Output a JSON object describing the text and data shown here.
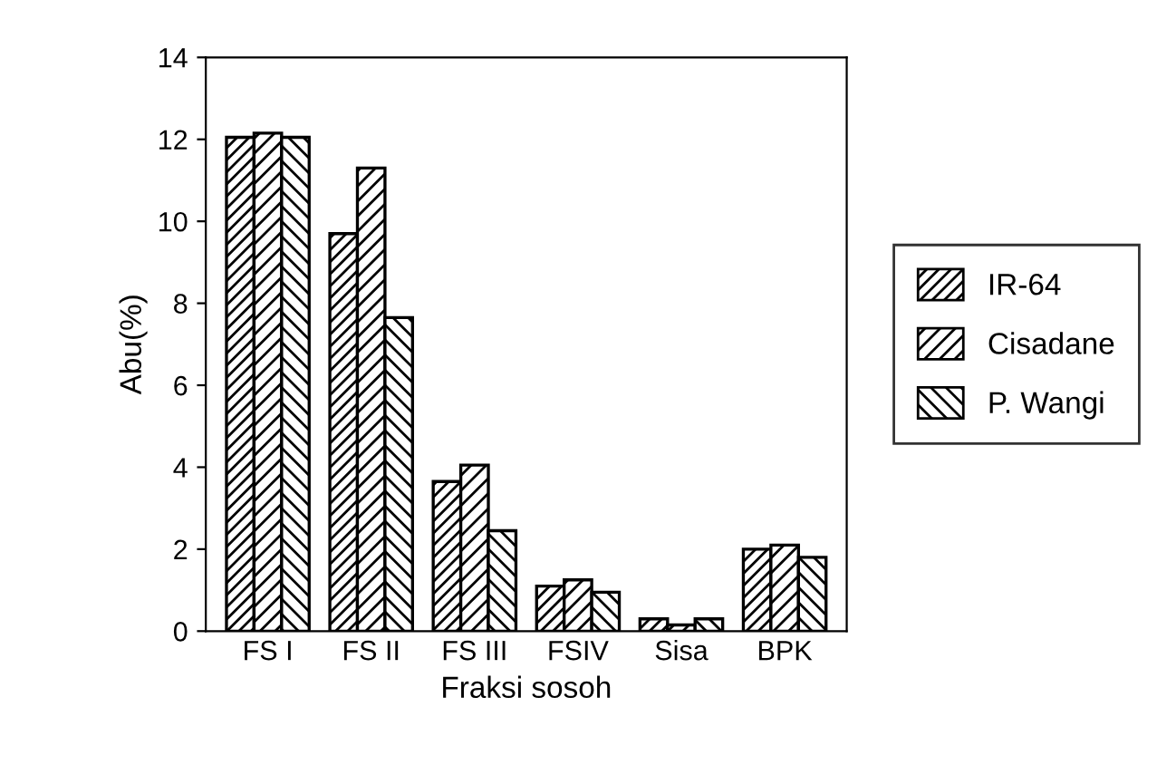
{
  "chart_data": {
    "type": "bar",
    "xlabel": "Fraksi sosoh",
    "ylabel": "Abu(%)",
    "categories": [
      "FS I",
      "FS II",
      "FS III",
      "FSIV",
      "Sisa",
      "BPK"
    ],
    "series": [
      {
        "name": "IR-64",
        "color": "#000000",
        "values": [
          12.05,
          9.7,
          3.65,
          1.1,
          0.3,
          2.0
        ]
      },
      {
        "name": "Cisadane",
        "color": "#000000",
        "values": [
          12.15,
          11.3,
          4.05,
          1.25,
          0.15,
          2.1
        ]
      },
      {
        "name": "P. Wangi",
        "color": "#000000",
        "values": [
          12.05,
          7.65,
          2.45,
          0.95,
          0.3,
          1.8
        ]
      }
    ],
    "ylim": [
      0,
      14
    ],
    "yticks": [
      0,
      2,
      4,
      6,
      8,
      10,
      12,
      14
    ],
    "grid": false,
    "legend": "right"
  }
}
